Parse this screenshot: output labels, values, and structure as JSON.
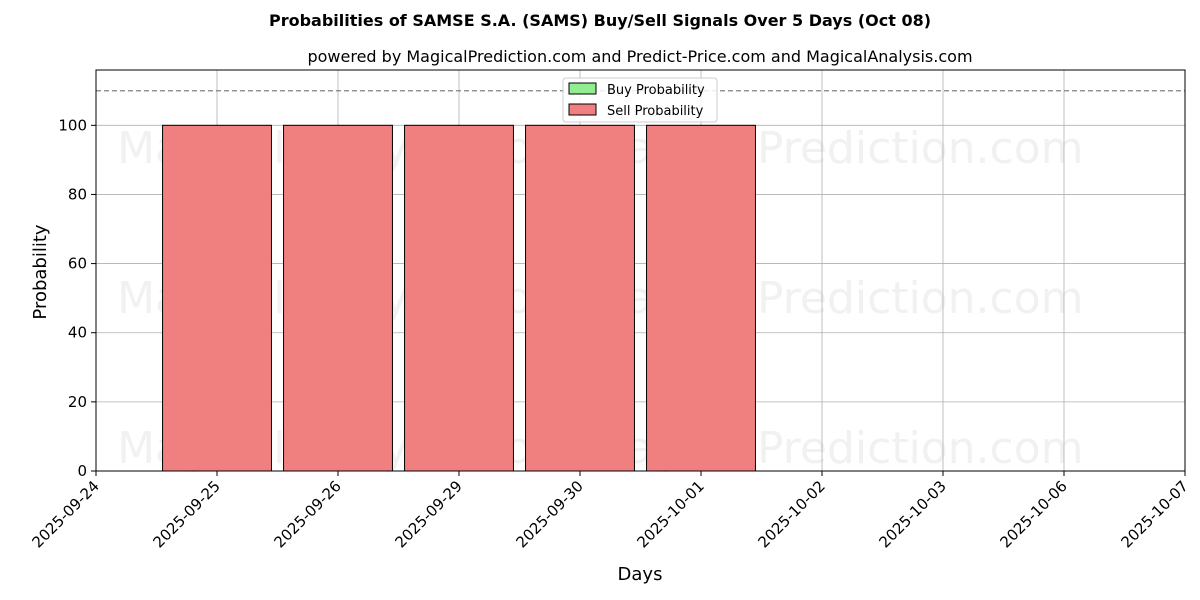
{
  "chart_data": {
    "type": "bar",
    "title": "Probabilities of SAMSE S.A. (SAMS) Buy/Sell Signals Over 5 Days (Oct 08)",
    "subtitle": "powered by MagicalPrediction.com and Predict-Price.com and MagicalAnalysis.com",
    "xlabel": "Days",
    "ylabel": "Probability",
    "categories": [
      "2025-09-24",
      "2025-09-25",
      "2025-09-26",
      "2025-09-29",
      "2025-09-30",
      "2025-10-01",
      "2025-10-02",
      "2025-10-03",
      "2025-10-06",
      "2025-10-07"
    ],
    "ylim": [
      0,
      116
    ],
    "yticks": [
      0,
      20,
      40,
      60,
      80,
      100
    ],
    "reference_line": 110,
    "grid": true,
    "legend_position": "top-center",
    "series": [
      {
        "name": "Buy Probability",
        "color": "#90ee90",
        "points": []
      },
      {
        "name": "Sell Probability",
        "color": "#f08080",
        "points": [
          {
            "x": "2025-09-25",
            "y": 100
          },
          {
            "x": "2025-09-26",
            "y": 100
          },
          {
            "x": "2025-09-29",
            "y": 100
          },
          {
            "x": "2025-09-30",
            "y": 100
          },
          {
            "x": "2025-10-01",
            "y": 100
          }
        ]
      }
    ],
    "watermarks": [
      "MagicalAnalysis.com",
      "MagicalPrediction.com"
    ]
  }
}
